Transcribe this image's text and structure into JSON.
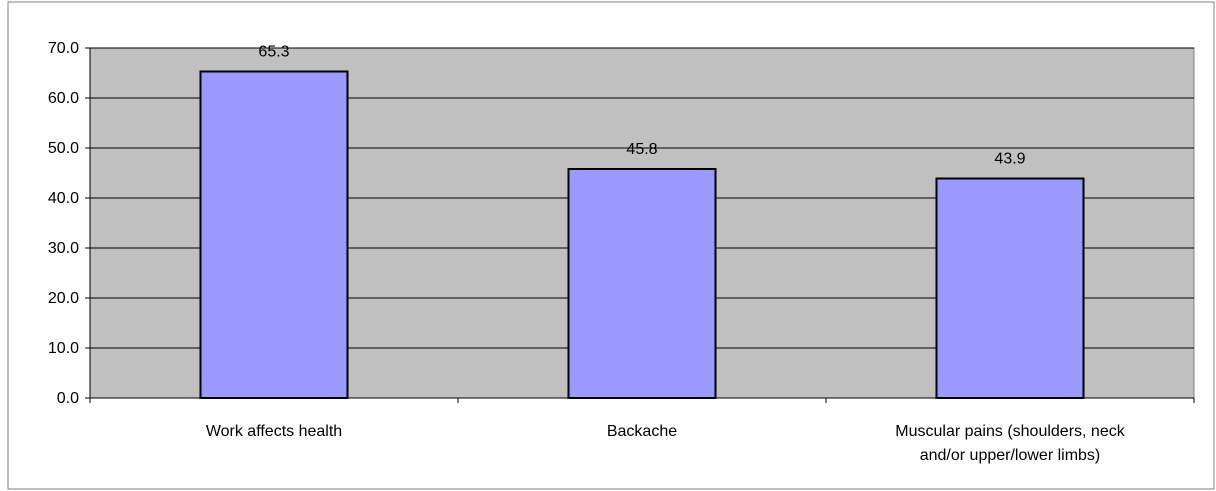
{
  "chart_data": {
    "type": "bar",
    "title": "",
    "xlabel": "",
    "ylabel": "",
    "categories": [
      [
        "Work affects health"
      ],
      [
        "Backache"
      ],
      [
        "Muscular pains (shoulders, neck",
        "and/or upper/lower limbs)"
      ]
    ],
    "values": [
      65.3,
      45.8,
      43.9
    ],
    "value_labels": [
      "65.3",
      "45.8",
      "43.9"
    ],
    "ylim": [
      0,
      70
    ],
    "yticks": [
      "0.0",
      "10.0",
      "20.0",
      "30.0",
      "40.0",
      "50.0",
      "60.0",
      "70.0"
    ],
    "grid": true,
    "legend": "none",
    "colors": {
      "plot_background": "#c0c0c0",
      "bar_fill": "#9999ff",
      "bar_stroke": "#000000",
      "gridline": "#000000",
      "frame": "#808080"
    }
  }
}
